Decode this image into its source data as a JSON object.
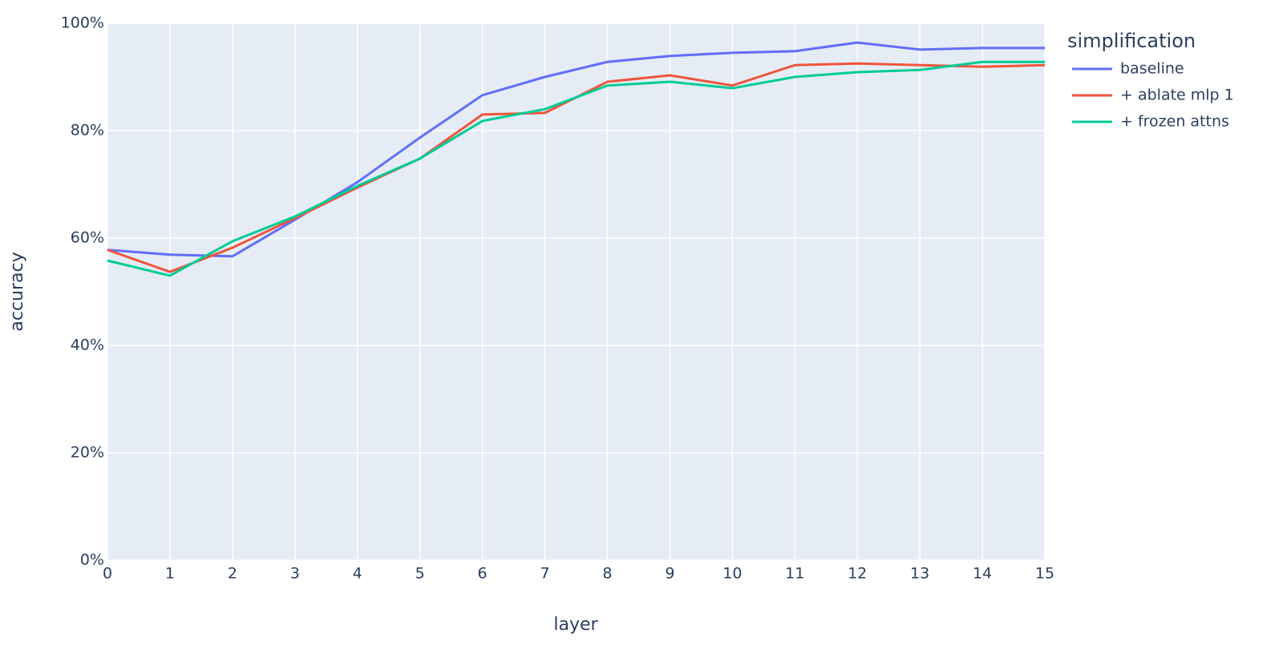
{
  "chart_data": {
    "type": "line",
    "x": [
      0,
      1,
      2,
      3,
      4,
      5,
      6,
      7,
      8,
      9,
      10,
      11,
      12,
      13,
      14,
      15
    ],
    "xlim": [
      0,
      15
    ],
    "xticks": [
      0,
      1,
      2,
      3,
      4,
      5,
      6,
      7,
      8,
      9,
      10,
      11,
      12,
      13,
      14,
      15
    ],
    "ylim": [
      0,
      100
    ],
    "yticks": [
      {
        "value": 0,
        "label": "0%"
      },
      {
        "value": 20,
        "label": "20%"
      },
      {
        "value": 40,
        "label": "40%"
      },
      {
        "value": 60,
        "label": "60%"
      },
      {
        "value": 80,
        "label": "80%"
      },
      {
        "value": 100,
        "label": "100%"
      }
    ],
    "x_label": "layer",
    "y_label": "accuracy",
    "legend_title": "simplification",
    "legend": "right",
    "grid": true,
    "series": [
      {
        "name": "baseline",
        "color": "#636efa",
        "values": [
          57.8,
          56.9,
          56.6,
          63.4,
          70.4,
          78.7,
          86.6,
          90.0,
          92.8,
          93.9,
          94.5,
          94.8,
          96.4,
          95.1,
          95.4,
          95.4
        ]
      },
      {
        "name": "+ ablate mlp 1",
        "color": "#ef553b",
        "values": [
          57.8,
          53.7,
          58.2,
          63.7,
          69.4,
          74.8,
          83.0,
          83.3,
          89.1,
          90.3,
          88.4,
          92.2,
          92.5,
          92.2,
          91.9,
          92.2
        ]
      },
      {
        "name": "+ frozen attns",
        "color": "#00cc96",
        "values": [
          55.8,
          53.0,
          59.4,
          64.0,
          69.7,
          74.8,
          81.8,
          84.0,
          88.4,
          89.1,
          87.9,
          90.0,
          90.9,
          91.3,
          92.8,
          92.8
        ]
      }
    ]
  }
}
